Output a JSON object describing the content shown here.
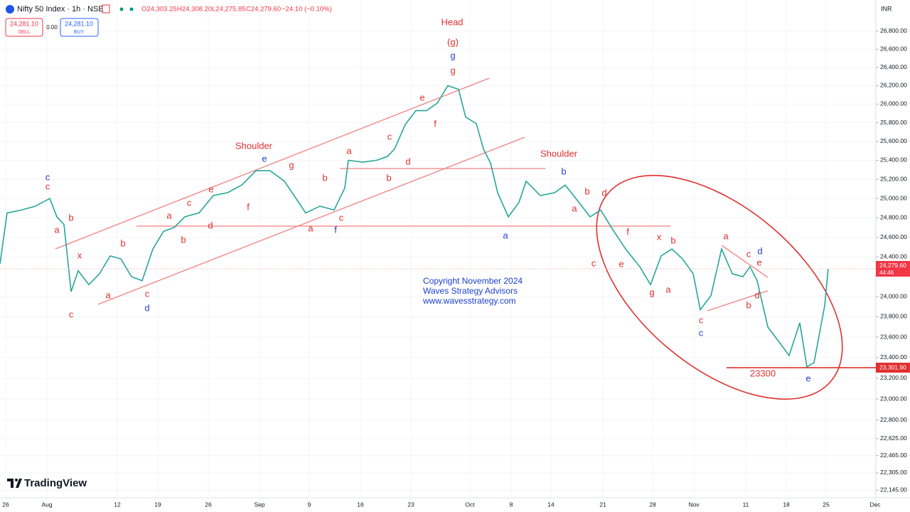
{
  "header": {
    "symbol": "Nifty 50 Index · 1h · NSE",
    "ohlc": [
      "O24,303.25",
      "H24,308.20",
      "L24,275.85",
      "C24,279.60",
      "−24.10 (−0.10%)"
    ],
    "sell_price": "24,281.10",
    "sell": "SELL",
    "spread": "0.00",
    "buy_price": "24,281.10",
    "buy": "BUY",
    "currency": "INR"
  },
  "logo": "TradingView",
  "copyright": [
    "Copyright November 2024",
    "Waves Strategy Advisors",
    "www.wavesstrategy.com"
  ],
  "annotations": [
    "c",
    "c",
    "a",
    "b",
    "x",
    "c",
    "b",
    "a",
    "c",
    "d",
    "a",
    "c",
    "b",
    "e",
    "d",
    "f",
    "Shoulder",
    "e",
    "g",
    "b",
    "a",
    "f",
    "c",
    "a",
    "b",
    "c",
    "d",
    "e",
    "f",
    "g",
    "g",
    "(g)",
    "Head",
    "Shoulder",
    "b",
    "b",
    "d",
    "a",
    "a",
    "c",
    "f",
    "e",
    "x",
    "b",
    "g",
    "a",
    "a",
    "c",
    "c",
    "c",
    "d",
    "e",
    "d",
    "b",
    "e",
    "23300"
  ],
  "chart_data": {
    "type": "line",
    "log_scale": true,
    "grid": true,
    "x": [
      0,
      5,
      15,
      25,
      35,
      40,
      45,
      50,
      55,
      62.5,
      70,
      77.5,
      85,
      92.5,
      100,
      107.5,
      115,
      122.5,
      130,
      140,
      150,
      160,
      170,
      180,
      190,
      200,
      210,
      215,
      225,
      235,
      242.5,
      245,
      255,
      265,
      272.5,
      277.5,
      285,
      292.5,
      300,
      307.5,
      315,
      322.5,
      327.5,
      335,
      340,
      345,
      350,
      357.5,
      365,
      370,
      380,
      390,
      397.5,
      405,
      415,
      422.5,
      430,
      440,
      450,
      457.5,
      465,
      472.5,
      480,
      487.5,
      492.5,
      500,
      507.5,
      515,
      522.5,
      527.5,
      532.5,
      540,
      547.5,
      555,
      562.5,
      567.5,
      572.5,
      580,
      582.5
    ],
    "series": [
      {
        "name": "Nifty 50 Index",
        "color": "#26a69a",
        "values": [
          24330,
          24850,
          24880,
          24920,
          25000,
          24810,
          24730,
          24050,
          24260,
          24120,
          24230,
          24410,
          24380,
          24200,
          24160,
          24480,
          24660,
          24700,
          24810,
          24850,
          25030,
          25060,
          25140,
          25290,
          25290,
          25180,
          24960,
          24850,
          24920,
          24880,
          25110,
          25400,
          25380,
          25400,
          25440,
          25520,
          25780,
          25930,
          25930,
          26010,
          26200,
          26160,
          25860,
          25790,
          25520,
          25370,
          25060,
          24810,
          24960,
          25180,
          25030,
          25060,
          25140,
          25000,
          24810,
          24880,
          24700,
          24480,
          24300,
          24120,
          24410,
          24480,
          24380,
          24230,
          23870,
          24010,
          24480,
          24230,
          24200,
          24300,
          24160,
          23700,
          23560,
          23420,
          23740,
          23310,
          23350,
          23910,
          24280
        ]
      }
    ],
    "xlim": [
      0,
      616
    ],
    "ylim": [
      22075,
      27150
    ],
    "xticks": [
      {
        "value": 4,
        "label": "26"
      },
      {
        "value": 33,
        "label": "Aug"
      },
      {
        "value": 82.5,
        "label": "12"
      },
      {
        "value": 111,
        "label": "19"
      },
      {
        "value": 146.5,
        "label": "26"
      },
      {
        "value": 182.5,
        "label": "Sep"
      },
      {
        "value": 217.5,
        "label": "9"
      },
      {
        "value": 253.5,
        "label": "16"
      },
      {
        "value": 289,
        "label": "23"
      },
      {
        "value": 330.5,
        "label": "Oct"
      },
      {
        "value": 359.5,
        "label": "8"
      },
      {
        "value": 387.5,
        "label": "14"
      },
      {
        "value": 424,
        "label": "21"
      },
      {
        "value": 459,
        "label": "28"
      },
      {
        "value": 488,
        "label": "Nov"
      },
      {
        "value": 524.5,
        "label": "11"
      },
      {
        "value": 553,
        "label": "18"
      },
      {
        "value": 581,
        "label": "25"
      },
      {
        "value": 615.5,
        "label": "Dec"
      }
    ],
    "yticks": [
      {
        "value": 26800,
        "label": "26,800.00"
      },
      {
        "value": 26600,
        "label": "26,600.00"
      },
      {
        "value": 26400,
        "label": "26,400.00"
      },
      {
        "value": 26200,
        "label": "26,200.00"
      },
      {
        "value": 26000,
        "label": "26,000.00"
      },
      {
        "value": 25800,
        "label": "25,800.00"
      },
      {
        "value": 25600,
        "label": "25,600.00"
      },
      {
        "value": 25400,
        "label": "25,400.00"
      },
      {
        "value": 25200,
        "label": "25,200.00"
      },
      {
        "value": 25000,
        "label": "25,000.00"
      },
      {
        "value": 24800,
        "label": "24,800.00"
      },
      {
        "value": 24600,
        "label": "24,600.00"
      },
      {
        "value": 24400,
        "label": "24,400.00"
      },
      {
        "value": 24000,
        "label": "24,000.00"
      },
      {
        "value": 23800,
        "label": "23,800.00"
      },
      {
        "value": 23600,
        "label": "23,600.00"
      },
      {
        "value": 23400,
        "label": "23,400.00"
      },
      {
        "value": 23200,
        "label": "23,200.00"
      },
      {
        "value": 23000,
        "label": "23,000.00"
      },
      {
        "value": 22800,
        "label": "22,800.00"
      },
      {
        "value": 22625,
        "label": "22,625.00"
      },
      {
        "value": 22465,
        "label": "22,465.00"
      },
      {
        "value": 22305,
        "label": "22,305.00"
      },
      {
        "value": 22145,
        "label": "22,145.00"
      }
    ],
    "price_marker": {
      "value": 24279.6,
      "label": "24,279.60",
      "countdown": "44:46"
    },
    "support_marker": {
      "value": 23301.9,
      "label": "23,301.90"
    }
  }
}
